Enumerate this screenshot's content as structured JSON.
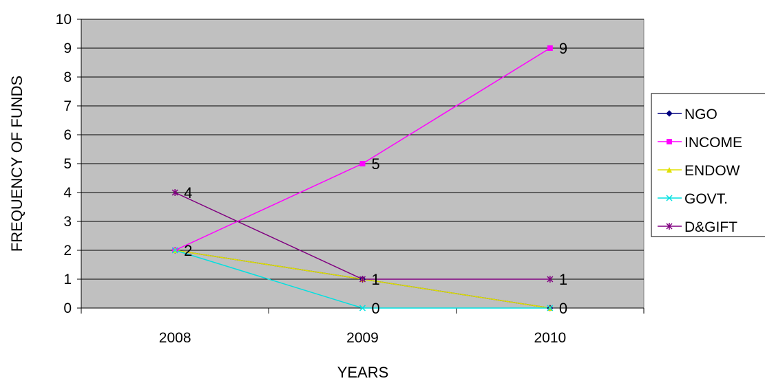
{
  "chart_data": {
    "type": "line",
    "xlabel": "YEARS",
    "ylabel": "FREQUENCY OF FUNDS",
    "categories": [
      "2008",
      "2009",
      "2010"
    ],
    "ylim": [
      0,
      10
    ],
    "yticks": [
      "0",
      "1",
      "2",
      "3",
      "4",
      "5",
      "6",
      "7",
      "8",
      "9",
      "10"
    ],
    "grid": true,
    "legend_position": "right",
    "plot_background": "#c0c0c0",
    "series": [
      {
        "name": "NGO",
        "values": [
          2,
          1,
          0
        ],
        "color": "#000080",
        "marker": "diamond",
        "labels": [
          "2",
          "1",
          "0"
        ]
      },
      {
        "name": "INCOME",
        "values": [
          2,
          5,
          9
        ],
        "color": "#ff00ff",
        "marker": "square",
        "labels": [
          "",
          "5",
          "9"
        ]
      },
      {
        "name": "ENDOW",
        "values": [
          2,
          1,
          0
        ],
        "color": "#e0e000",
        "marker": "triangle",
        "labels": [
          "",
          "",
          ""
        ]
      },
      {
        "name": "GOVT.",
        "values": [
          2,
          0,
          0
        ],
        "color": "#00e0e0",
        "marker": "x",
        "labels": [
          "",
          "0",
          ""
        ]
      },
      {
        "name": "D&GIFT",
        "values": [
          4,
          1,
          1
        ],
        "color": "#800080",
        "marker": "star",
        "labels": [
          "4",
          "",
          "1"
        ]
      }
    ]
  }
}
